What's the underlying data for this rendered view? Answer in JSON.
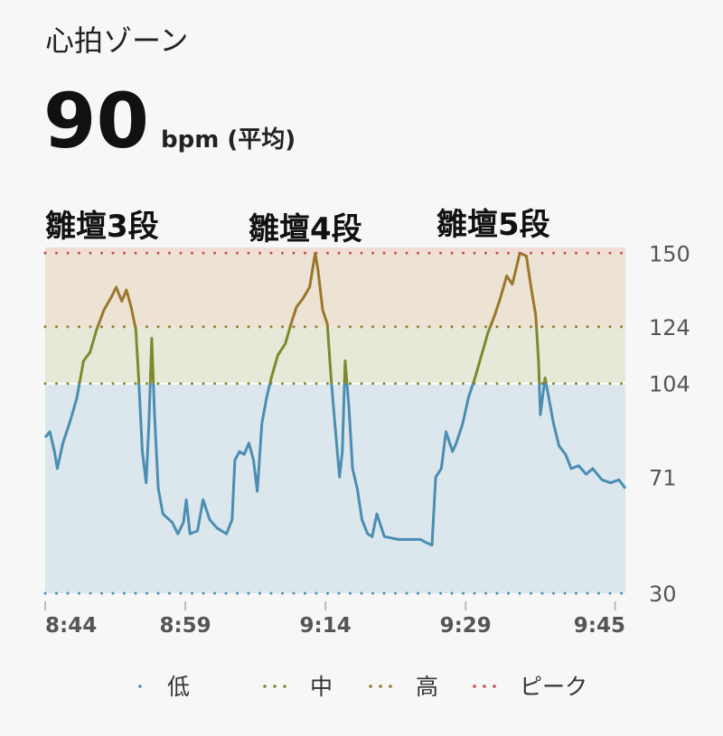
{
  "header": {
    "title": "心拍ゾーン",
    "value": "90",
    "unit": "bpm (平均)"
  },
  "chart_data": {
    "type": "line",
    "annotations": [
      "雛壇3段",
      "雛壇4段",
      "雛壇5段"
    ],
    "x": [
      0,
      0.5,
      1.0,
      1.3,
      1.9,
      2.7,
      3.4,
      4.1,
      4.8,
      5.5,
      6.3,
      7.0,
      7.6,
      8.2,
      8.7,
      9.2,
      9.7,
      10.0,
      10.4,
      10.8,
      11.1,
      11.4,
      11.7,
      12.1,
      12.6,
      13.6,
      14.2,
      14.8,
      15.1,
      15.5,
      16.3,
      16.9,
      17.6,
      18.4,
      19.4,
      20.0,
      20.3,
      20.8,
      21.3,
      21.8,
      22.3,
      22.7,
      23.2,
      23.7,
      24.2,
      24.9,
      25.7,
      26.3,
      26.9,
      27.6,
      28.3,
      28.9,
      29.2,
      29.7,
      30.2,
      30.6,
      31.0,
      31.5,
      31.8,
      32.1,
      32.5,
      32.9,
      33.4,
      33.9,
      34.5,
      35.0,
      35.5,
      36.3,
      37.8,
      39.2,
      40.2,
      40.7,
      41.4,
      41.8,
      42.4,
      42.9,
      43.6,
      44.0,
      44.7,
      45.3,
      46.0,
      46.7,
      47.4,
      48.1,
      48.7,
      49.4,
      50.0,
      50.8,
      51.5,
      52.0,
      52.5,
      52.8,
      53.0,
      53.5,
      53.9,
      54.4,
      55.0,
      55.7,
      56.3,
      57.1,
      57.9,
      58.6,
      59.6,
      60.5,
      61.4,
      62.1
    ],
    "values": [
      85,
      87,
      80,
      74,
      83,
      91,
      99,
      112,
      115,
      123,
      130,
      134,
      138,
      133,
      137,
      131,
      123,
      106,
      80,
      69,
      90,
      120,
      93,
      67,
      58,
      55,
      51,
      55,
      63,
      51,
      52,
      63,
      56,
      53,
      51,
      56,
      77,
      80,
      79,
      83,
      77,
      66,
      90,
      99,
      106,
      114,
      118,
      125,
      131,
      134,
      138,
      150,
      144,
      130,
      125,
      106,
      90,
      71,
      80,
      112,
      96,
      74,
      67,
      56,
      51,
      50,
      58,
      50,
      49,
      49,
      49,
      48,
      47,
      71,
      74,
      87,
      80,
      83,
      90,
      99,
      106,
      114,
      122,
      128,
      134,
      142,
      139,
      150,
      149,
      138,
      128,
      112,
      93,
      106,
      99,
      90,
      82,
      79,
      74,
      75,
      72,
      74,
      70,
      69,
      70,
      67
    ],
    "xlim": [
      0,
      62.1
    ],
    "xticks": [
      {
        "value": 0,
        "label": "8:44"
      },
      {
        "value": 15,
        "label": "8:59"
      },
      {
        "value": 30,
        "label": "9:14"
      },
      {
        "value": 45,
        "label": "9:29"
      },
      {
        "value": 61,
        "label": "9:45"
      }
    ],
    "ylim": [
      30,
      152
    ],
    "yticks": [
      30,
      71,
      104,
      124,
      150
    ],
    "zones": [
      {
        "name": "低",
        "min": 30,
        "color": "#4b8db3",
        "bg": "#dbe7ec"
      },
      {
        "name": "中",
        "min": 104,
        "color": "#7d8a2c",
        "bg": "#e6e8d8"
      },
      {
        "name": "高",
        "min": 124,
        "color": "#9a772b",
        "bg": "#ede3d4"
      },
      {
        "name": "ピーク",
        "min": 150,
        "color": "#c2534f",
        "bg": "#f1dcd6"
      }
    ]
  }
}
